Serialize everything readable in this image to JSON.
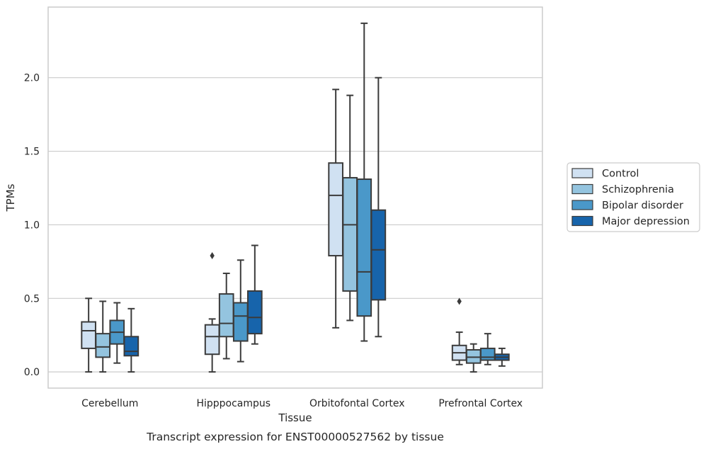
{
  "chart_data": {
    "type": "boxplot",
    "title": "",
    "caption": "Transcript expression for ENST00000527562 by tissue",
    "xlabel": "Tissue",
    "ylabel": "TPMs",
    "ylim": [
      -0.11,
      2.48
    ],
    "yticks": [
      0.0,
      0.5,
      1.0,
      1.5,
      2.0
    ],
    "ytick_labels": [
      "0.0",
      "0.5",
      "1.0",
      "1.5",
      "2.0"
    ],
    "grid": "horizontal",
    "legend_position": "right",
    "categories": [
      "Cerebellum",
      "Hipppocampus",
      "Orbitofontal Cortex",
      "Prefrontal Cortex"
    ],
    "series": [
      {
        "name": "Control",
        "color": "#d0e1f2",
        "boxes": [
          {
            "whislo": 0.0,
            "q1": 0.16,
            "med": 0.28,
            "q3": 0.34,
            "whishi": 0.5,
            "fliers": []
          },
          {
            "whislo": 0.0,
            "q1": 0.12,
            "med": 0.24,
            "q3": 0.32,
            "whishi": 0.36,
            "fliers": [
              0.79
            ]
          },
          {
            "whislo": 0.3,
            "q1": 0.79,
            "med": 1.2,
            "q3": 1.42,
            "whishi": 1.92,
            "fliers": []
          },
          {
            "whislo": 0.05,
            "q1": 0.08,
            "med": 0.13,
            "q3": 0.18,
            "whishi": 0.27,
            "fliers": [
              0.48
            ]
          }
        ]
      },
      {
        "name": "Schizophrenia",
        "color": "#94c4df",
        "boxes": [
          {
            "whislo": 0.0,
            "q1": 0.1,
            "med": 0.17,
            "q3": 0.26,
            "whishi": 0.48,
            "fliers": []
          },
          {
            "whislo": 0.09,
            "q1": 0.24,
            "med": 0.33,
            "q3": 0.53,
            "whishi": 0.67,
            "fliers": []
          },
          {
            "whislo": 0.35,
            "q1": 0.55,
            "med": 1.0,
            "q3": 1.32,
            "whishi": 1.88,
            "fliers": []
          },
          {
            "whislo": 0.0,
            "q1": 0.06,
            "med": 0.1,
            "q3": 0.15,
            "whishi": 0.19,
            "fliers": []
          }
        ]
      },
      {
        "name": "Bipolar disorder",
        "color": "#4a98c9",
        "boxes": [
          {
            "whislo": 0.06,
            "q1": 0.19,
            "med": 0.27,
            "q3": 0.35,
            "whishi": 0.47,
            "fliers": []
          },
          {
            "whislo": 0.07,
            "q1": 0.21,
            "med": 0.38,
            "q3": 0.47,
            "whishi": 0.76,
            "fliers": []
          },
          {
            "whislo": 0.21,
            "q1": 0.38,
            "med": 0.68,
            "q3": 1.31,
            "whishi": 2.37,
            "fliers": []
          },
          {
            "whislo": 0.05,
            "q1": 0.08,
            "med": 0.1,
            "q3": 0.16,
            "whishi": 0.26,
            "fliers": []
          }
        ]
      },
      {
        "name": "Major depression",
        "color": "#1764ab",
        "boxes": [
          {
            "whislo": 0.0,
            "q1": 0.11,
            "med": 0.14,
            "q3": 0.24,
            "whishi": 0.43,
            "fliers": []
          },
          {
            "whislo": 0.19,
            "q1": 0.26,
            "med": 0.37,
            "q3": 0.55,
            "whishi": 0.86,
            "fliers": []
          },
          {
            "whislo": 0.24,
            "q1": 0.49,
            "med": 0.83,
            "q3": 1.1,
            "whishi": 2.0,
            "fliers": []
          },
          {
            "whislo": 0.04,
            "q1": 0.08,
            "med": 0.1,
            "q3": 0.12,
            "whishi": 0.16,
            "fliers": []
          }
        ]
      }
    ]
  }
}
